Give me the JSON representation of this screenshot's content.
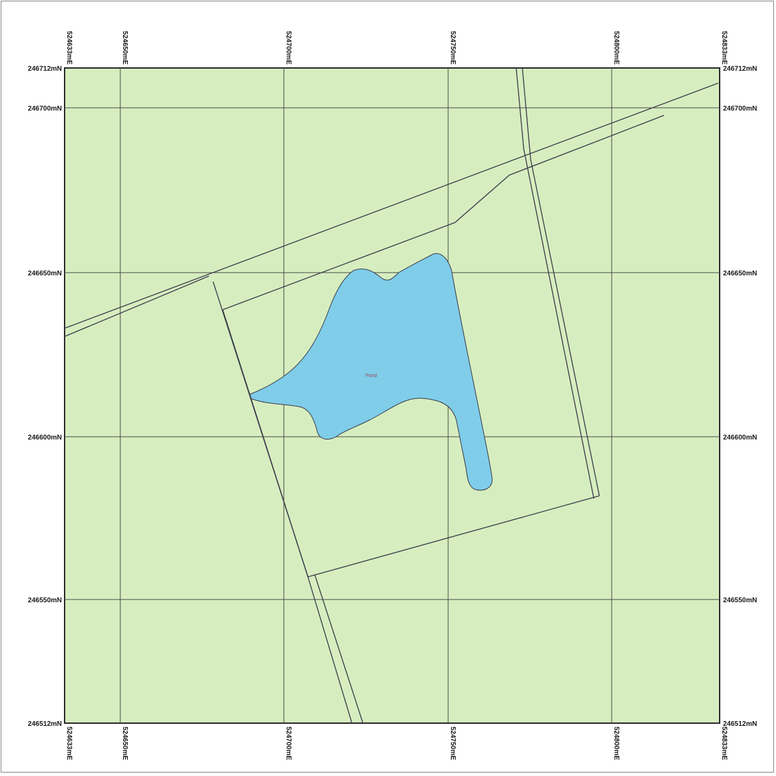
{
  "map": {
    "easting_labels": [
      "524633mE",
      "524650mE",
      "524700mE",
      "524750mE",
      "524800mE",
      "524833mE"
    ],
    "northing_labels": [
      "246712mN",
      "246700mN",
      "246650mN",
      "246600mN",
      "246550mN",
      "246512mN"
    ],
    "feature_label": "Pond",
    "colors": {
      "land": "#d6eebf",
      "water": "#7fcde9",
      "lines": "#3a3a4a",
      "grid": "#4a4a4a"
    }
  }
}
